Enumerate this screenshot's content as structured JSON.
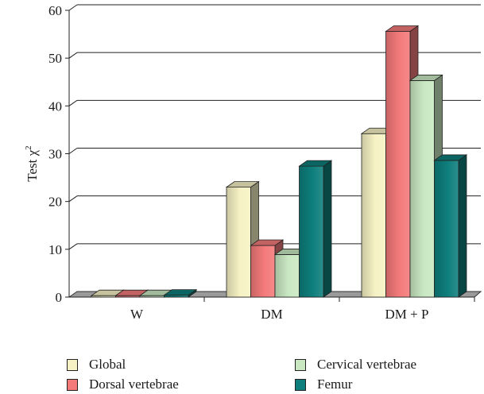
{
  "chart_data": {
    "type": "bar",
    "title": "",
    "xlabel": "",
    "ylabel": "Test χ",
    "ylabel_superscript": "2",
    "categories": [
      "W",
      "DM",
      "DM + P"
    ],
    "ylim": [
      0,
      60
    ],
    "yticks": [
      "0",
      "10",
      "20",
      "30",
      "40",
      "50",
      "60"
    ],
    "grid": true,
    "legend_position": "bottom",
    "series": [
      {
        "name": "Global",
        "color": "#f6f2c4",
        "values": [
          0.3,
          23,
          34.2
        ]
      },
      {
        "name": "Dorsal vertebrae",
        "color": "#f47a7a",
        "values": [
          0.3,
          10.8,
          55.6
        ]
      },
      {
        "name": "Cervical vertebrae",
        "color": "#c9e8c2",
        "values": [
          0.3,
          8.9,
          45.3
        ]
      },
      {
        "name": "Femur",
        "color": "#0e7f7c",
        "values": [
          0.4,
          27.4,
          28.6
        ]
      }
    ]
  }
}
